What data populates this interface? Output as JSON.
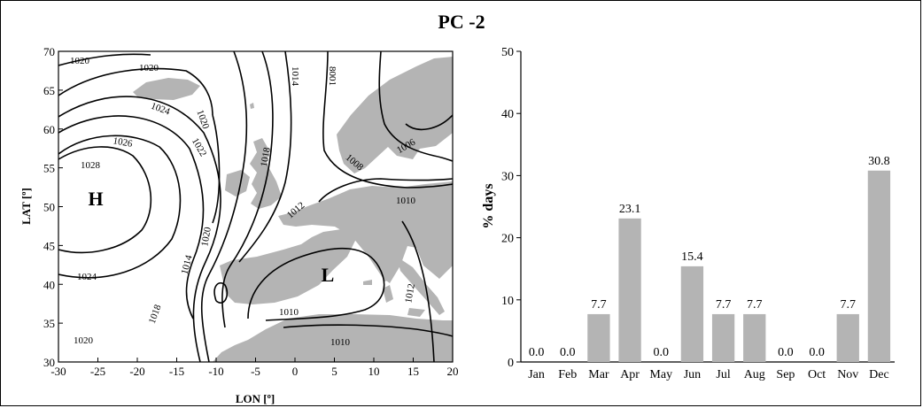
{
  "figure": {
    "title": "PC -2"
  },
  "map": {
    "xlabel": "LON [º]",
    "ylabel": "LAT [º]",
    "xticks": [
      -30,
      -25,
      -20,
      -15,
      -10,
      -5,
      0,
      5,
      10,
      15,
      20
    ],
    "yticks": [
      30,
      35,
      40,
      45,
      50,
      55,
      60,
      65,
      70
    ],
    "xlim": [
      -30,
      20
    ],
    "ylim": [
      30,
      70
    ],
    "high_label": "H",
    "low_label": "L",
    "contour_labels": [
      "1020",
      "1020",
      "1020",
      "1014",
      "8001",
      "1024",
      "1026",
      "1028",
      "1022",
      "1018",
      "1006",
      "1008",
      "1010",
      "1012",
      "1020",
      "1014",
      "1024",
      "1018",
      "1010",
      "1012",
      "1010",
      "1020"
    ],
    "land_color": "#b4b4b4"
  },
  "chart_data": {
    "type": "bar",
    "categories": [
      "Jan",
      "Feb",
      "Mar",
      "Apr",
      "May",
      "Jun",
      "Jul",
      "Aug",
      "Sep",
      "Oct",
      "Nov",
      "Dec"
    ],
    "values": [
      0.0,
      0.0,
      7.7,
      23.1,
      0.0,
      15.4,
      7.7,
      7.7,
      0.0,
      0.0,
      7.7,
      30.8
    ],
    "data_labels": [
      "0.0",
      "0.0",
      "7.7",
      "23.1",
      "0.0",
      "15.4",
      "7.7",
      "7.7",
      "0.0",
      "0.0",
      "7.7",
      "30.8"
    ],
    "title": "",
    "xlabel": "",
    "ylabel": "% days",
    "ylim": [
      0,
      50
    ],
    "yticks": [
      0,
      10,
      20,
      30,
      40,
      50
    ],
    "bar_color": "#b4b4b4",
    "grid": false
  }
}
